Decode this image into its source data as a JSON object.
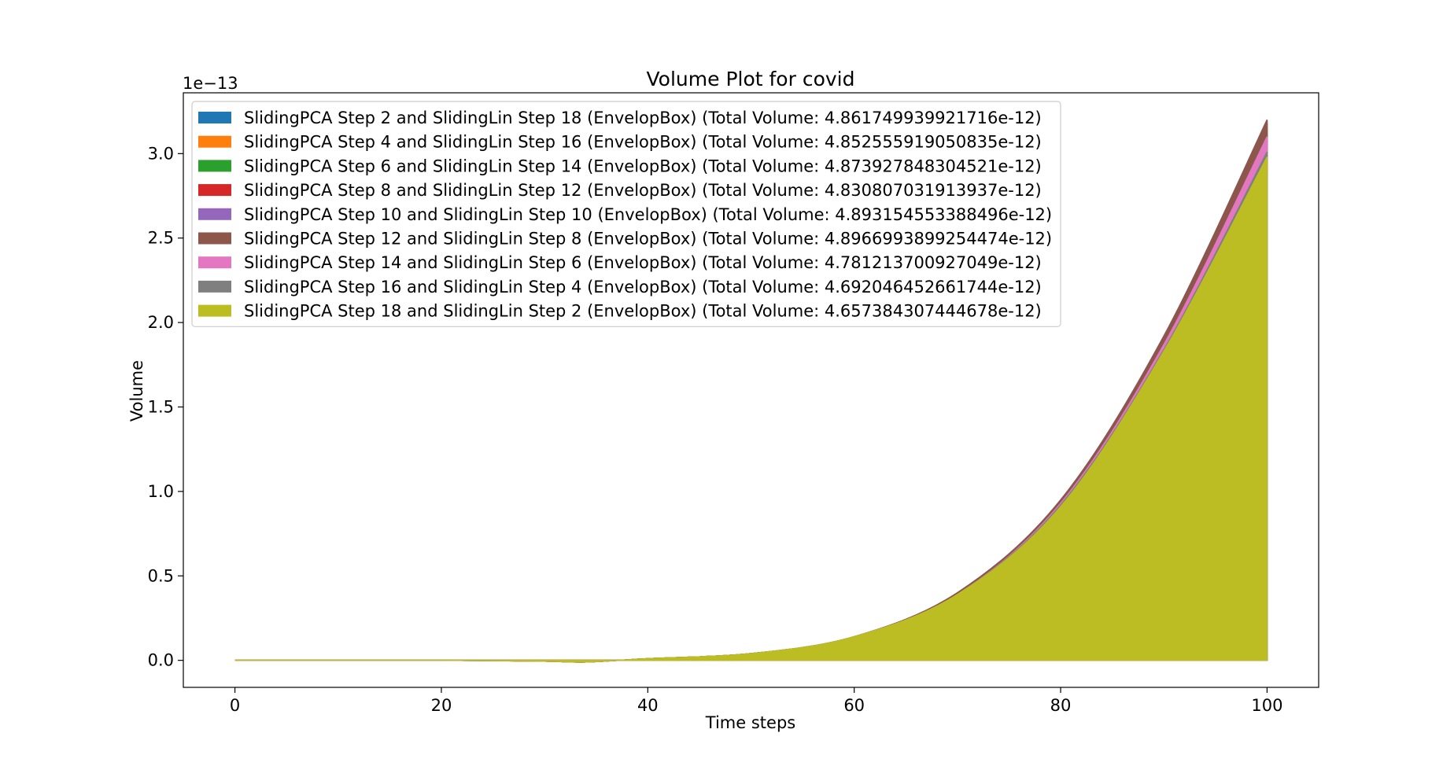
{
  "chart_data": {
    "type": "area",
    "title": "Volume Plot for covid",
    "xlabel": "Time steps",
    "ylabel": "Volume",
    "offset_text": "1e−13",
    "xlim": [
      -5,
      105
    ],
    "ylim": [
      -0.16,
      3.36
    ],
    "xticks": [
      0,
      20,
      40,
      60,
      80,
      100
    ],
    "xtick_labels": [
      "0",
      "20",
      "40",
      "60",
      "80",
      "100"
    ],
    "yticks": [
      0.0,
      0.5,
      1.0,
      1.5,
      2.0,
      2.5,
      3.0
    ],
    "ytick_labels": [
      "0.0",
      "0.5",
      "1.0",
      "1.5",
      "2.0",
      "2.5",
      "3.0"
    ],
    "grid": false,
    "legend_position": "upper-left",
    "x": [
      0,
      10,
      20,
      30,
      34,
      40,
      50,
      60,
      70,
      80,
      90,
      100
    ],
    "series": [
      {
        "name": "SlidingPCA Step 2 and SlidingLin Step 18 (EnvelopBox) (Total Volume: 4.861749939921716e-12)",
        "color": "#1f77b4",
        "values": [
          0.0,
          0.0,
          0.0,
          -0.005,
          -0.01,
          0.01,
          0.04,
          0.14,
          0.4,
          0.94,
          1.9,
          3.18
        ]
      },
      {
        "name": "SlidingPCA Step 4 and SlidingLin Step 16 (EnvelopBox) (Total Volume: 4.852555919050835e-12)",
        "color": "#ff7f0e",
        "values": [
          0.0,
          0.0,
          0.0,
          -0.005,
          -0.01,
          0.01,
          0.04,
          0.14,
          0.4,
          0.94,
          1.9,
          3.17
        ]
      },
      {
        "name": "SlidingPCA Step 6 and SlidingLin Step 14 (EnvelopBox) (Total Volume: 4.873927848304521e-12)",
        "color": "#2ca02c",
        "values": [
          0.0,
          0.0,
          0.0,
          -0.005,
          -0.01,
          0.01,
          0.04,
          0.14,
          0.4,
          0.94,
          1.91,
          3.19
        ]
      },
      {
        "name": "SlidingPCA Step 8 and SlidingLin Step 12 (EnvelopBox) (Total Volume: 4.830807031913937e-12)",
        "color": "#d62728",
        "values": [
          0.0,
          0.0,
          0.0,
          -0.005,
          -0.01,
          0.01,
          0.04,
          0.14,
          0.4,
          0.94,
          1.89,
          3.15
        ]
      },
      {
        "name": "SlidingPCA Step 10 and SlidingLin Step 10 (EnvelopBox) (Total Volume: 4.893154553388496e-12)",
        "color": "#9467bd",
        "values": [
          0.0,
          0.0,
          0.0,
          -0.005,
          -0.01,
          0.01,
          0.04,
          0.14,
          0.4,
          0.95,
          1.92,
          3.2
        ]
      },
      {
        "name": "SlidingPCA Step 12 and SlidingLin Step 8 (EnvelopBox) (Total Volume: 4.8966993899254474e-12)",
        "color": "#8c564b",
        "values": [
          0.0,
          0.0,
          0.0,
          -0.005,
          -0.01,
          0.01,
          0.04,
          0.14,
          0.4,
          0.95,
          1.92,
          3.2
        ]
      },
      {
        "name": "SlidingPCA Step 14 and SlidingLin Step 6 (EnvelopBox) (Total Volume: 4.781213700927049e-12)",
        "color": "#e377c2",
        "values": [
          0.0,
          0.0,
          0.0,
          -0.005,
          -0.01,
          0.01,
          0.04,
          0.14,
          0.39,
          0.93,
          1.87,
          3.1
        ]
      },
      {
        "name": "SlidingPCA Step 16 and SlidingLin Step 4 (EnvelopBox) (Total Volume: 4.692046452661744e-12)",
        "color": "#7f7f7f",
        "values": [
          0.0,
          0.0,
          0.0,
          -0.005,
          -0.01,
          0.01,
          0.04,
          0.14,
          0.39,
          0.92,
          1.84,
          3.01
        ]
      },
      {
        "name": "SlidingPCA Step 18 and SlidingLin Step 2 (EnvelopBox) (Total Volume: 4.657384307444678e-12)",
        "color": "#bcbd22",
        "values": [
          0.0,
          0.0,
          0.0,
          -0.005,
          -0.01,
          0.01,
          0.04,
          0.14,
          0.39,
          0.91,
          1.83,
          2.98
        ]
      }
    ]
  }
}
